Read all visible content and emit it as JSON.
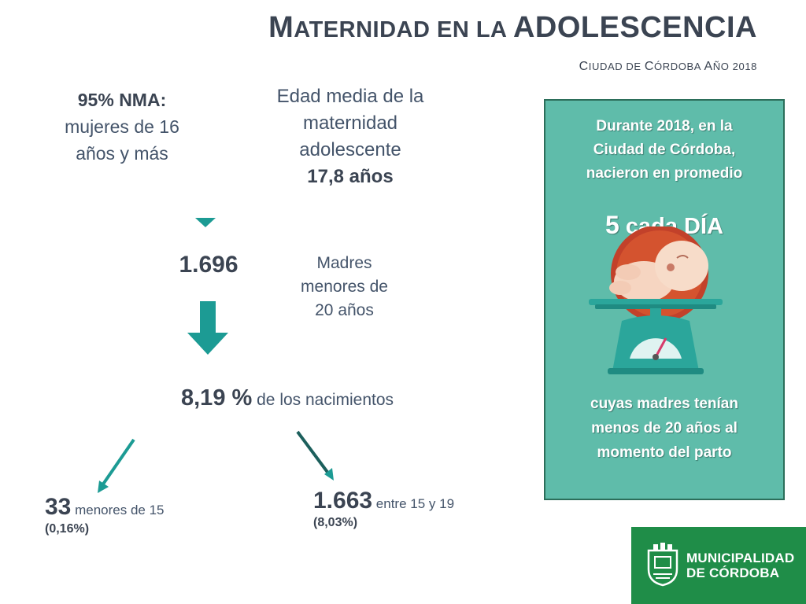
{
  "title": {
    "first_cap": "M",
    "first_rest": "ATERNIDAD EN LA ",
    "second": "ADOLESCENCIA"
  },
  "subtitle": {
    "c1": "C",
    "c1_rest": "IUDAD DE ",
    "c2": "C",
    "c2_rest": "ÓRDOBA ",
    "c3": "A",
    "c3_rest": "ÑO 2018"
  },
  "nma": {
    "bold": "95% NMA:",
    "line1": "mujeres de 16",
    "line2": "años y más"
  },
  "edad": {
    "line1": "Edad media de la",
    "line2": "maternidad",
    "line3": "adolescente",
    "value": "17,8 años"
  },
  "total_mothers": {
    "value": "1.696",
    "label1": "Madres",
    "label2": "menores de",
    "label3": "20 años"
  },
  "percent_births": {
    "value": "8,19 %",
    "label": " de los nacimientos"
  },
  "under15": {
    "value": "33",
    "label": " menores de 15",
    "pct": "(0,16%)"
  },
  "age15_19": {
    "value": "1.663",
    "label": " entre 15 y 19",
    "pct": "(8,03%)"
  },
  "panel": {
    "line1": "Durante 2018, en la",
    "line2": "Ciudad de Córdoba,",
    "line3": "nacieron en promedio",
    "per_day_num": "5",
    "per_day_text": " cada DÍA",
    "bottom1": "cuyas madres tenían",
    "bottom2": "menos de 20 años al",
    "bottom3": "momento del parto"
  },
  "logo": {
    "line1": "MUNICIPALIDAD",
    "line2": "DE CÓRDOBA"
  },
  "colors": {
    "accent_teal": "#1c9b94",
    "panel_green": "#5fbcaa",
    "logo_green": "#1f8d48",
    "text_dark": "#3b4452"
  }
}
